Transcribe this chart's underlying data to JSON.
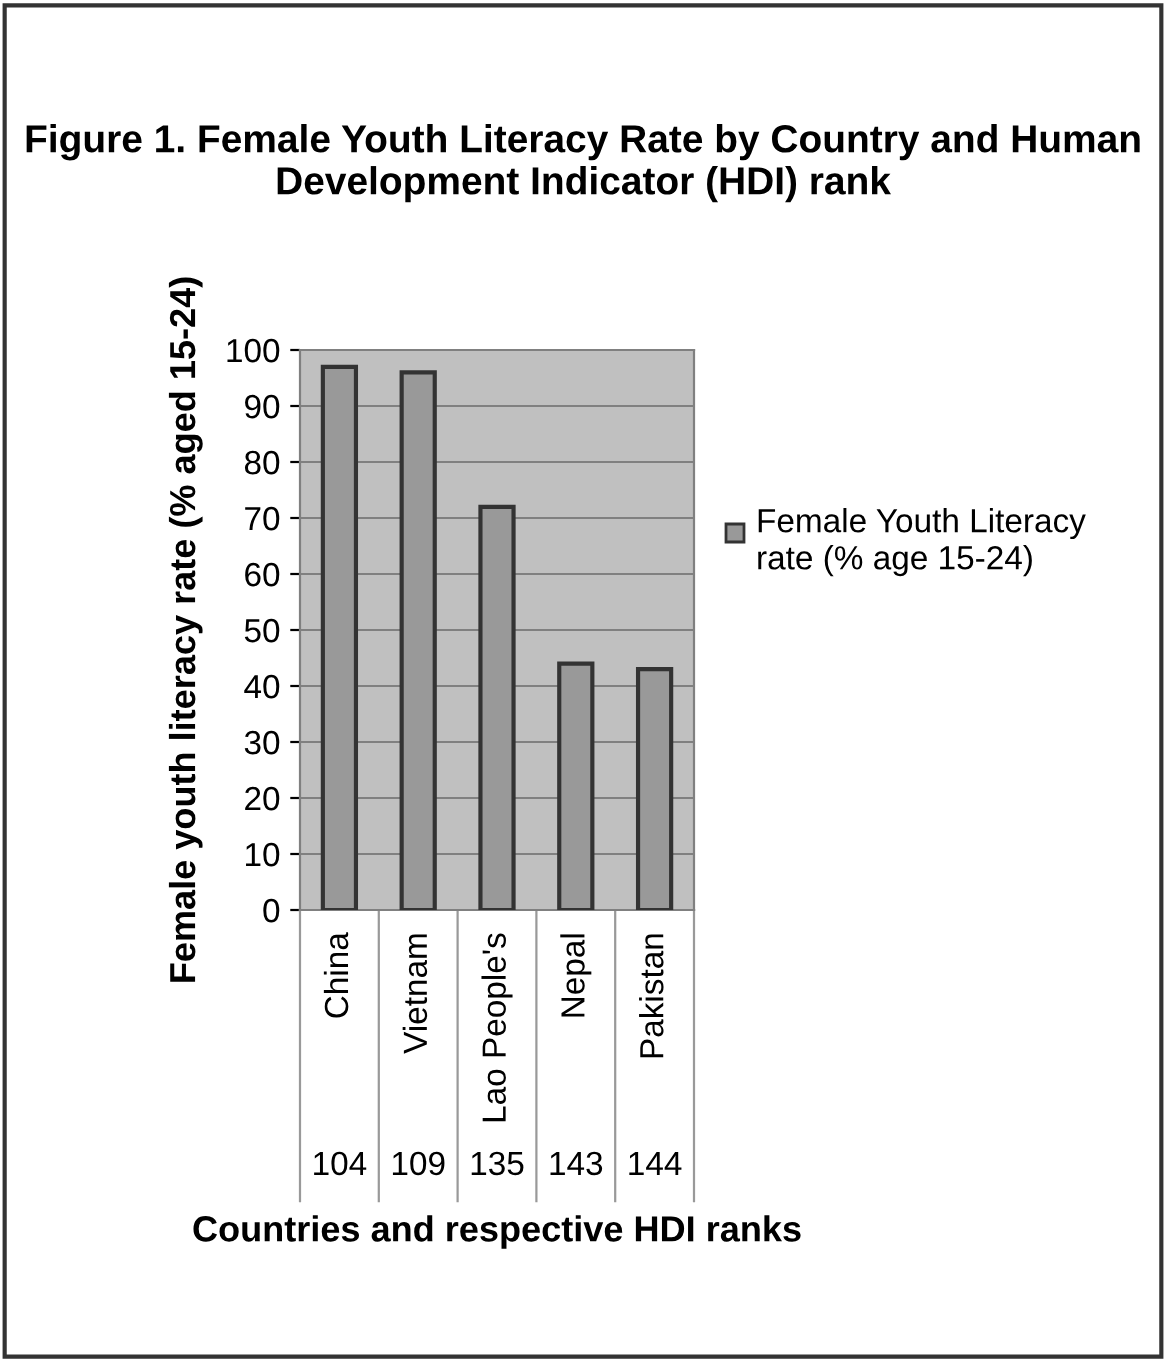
{
  "chart_data": {
    "type": "bar",
    "title": "Figure 1. Female Youth Literacy Rate by Country and Human Development Indicator (HDI) rank",
    "xlabel": "Countries and respective HDI ranks",
    "ylabel": "Female youth literacy rate (% aged 15-24)",
    "categories": [
      "China",
      "Vietnam",
      "Lao People's",
      "Nepal",
      "Pakistan"
    ],
    "annotations": [
      "104",
      "109",
      "135",
      "143",
      "144"
    ],
    "series": [
      {
        "name": "Female Youth Literacy rate (% age 15-24)",
        "color": "#999999",
        "values": [
          97,
          96,
          72,
          44,
          43
        ]
      }
    ],
    "ylim": [
      0,
      100
    ],
    "yticks": [
      0,
      10,
      20,
      30,
      40,
      50,
      60,
      70,
      80,
      90,
      100
    ],
    "grid": "y",
    "legend": "right"
  }
}
